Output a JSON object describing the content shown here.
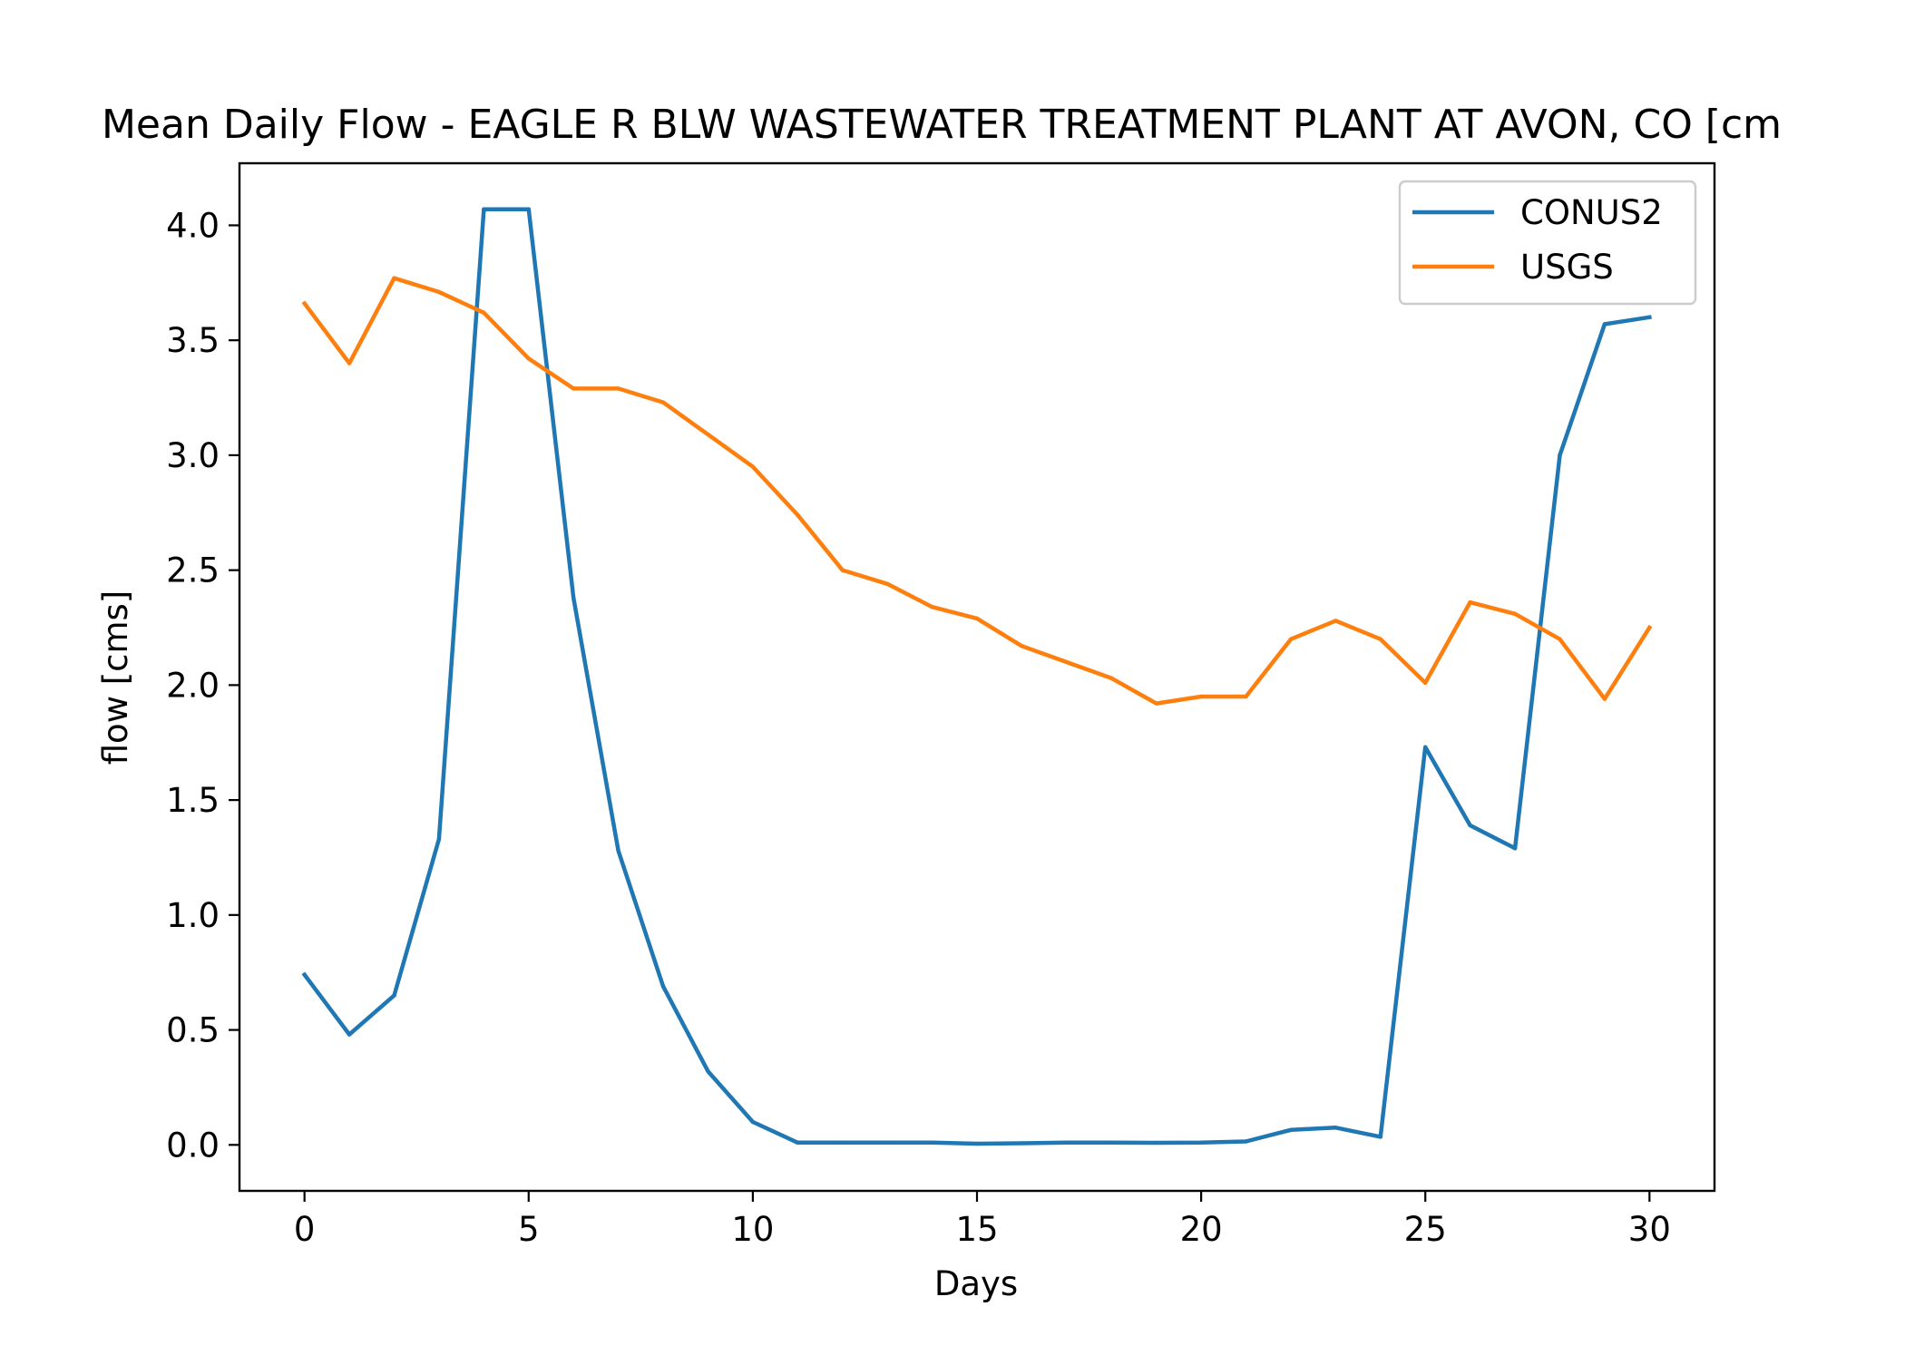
{
  "chart_data": {
    "type": "line",
    "title": "Mean Daily Flow - EAGLE R BLW WASTEWATER TREATMENT PLANT AT AVON, CO [cm",
    "xlabel": "Days",
    "ylabel": "flow [cms]",
    "xlim": [
      -1.45,
      31.45
    ],
    "ylim": [
      -0.2,
      4.27
    ],
    "xticks": [
      0,
      5,
      10,
      15,
      20,
      25,
      30
    ],
    "xtick_labels": [
      "0",
      "5",
      "10",
      "15",
      "20",
      "25",
      "30"
    ],
    "yticks": [
      0.0,
      0.5,
      1.0,
      1.5,
      2.0,
      2.5,
      3.0,
      3.5,
      4.0
    ],
    "ytick_labels": [
      "0.0",
      "0.5",
      "1.0",
      "1.5",
      "2.0",
      "2.5",
      "3.0",
      "3.5",
      "4.0"
    ],
    "grid": false,
    "legend_position": "top-right",
    "x": [
      0,
      1,
      2,
      3,
      4,
      5,
      6,
      7,
      8,
      9,
      10,
      11,
      12,
      13,
      14,
      15,
      16,
      17,
      18,
      19,
      20,
      21,
      22,
      23,
      24,
      25,
      26,
      27,
      28,
      29,
      30
    ],
    "series": [
      {
        "name": "CONUS2",
        "color": "#1f77b4",
        "values": [
          0.74,
          0.48,
          0.65,
          1.33,
          4.07,
          4.07,
          2.38,
          1.28,
          0.69,
          0.32,
          0.1,
          0.01,
          0.01,
          0.01,
          0.01,
          0.005,
          0.007,
          0.01,
          0.01,
          0.009,
          0.01,
          0.015,
          0.065,
          0.075,
          0.035,
          1.73,
          1.39,
          1.29,
          3.0,
          3.57,
          3.6
        ]
      },
      {
        "name": "USGS",
        "color": "#ff7f0e",
        "values": [
          3.66,
          3.4,
          3.77,
          3.71,
          3.62,
          3.42,
          3.29,
          3.29,
          3.23,
          3.09,
          2.95,
          2.74,
          2.5,
          2.44,
          2.34,
          2.29,
          2.17,
          2.1,
          2.03,
          1.92,
          1.95,
          1.95,
          2.2,
          2.28,
          2.2,
          2.01,
          2.36,
          2.31,
          2.2,
          1.94,
          2.25
        ]
      }
    ]
  }
}
